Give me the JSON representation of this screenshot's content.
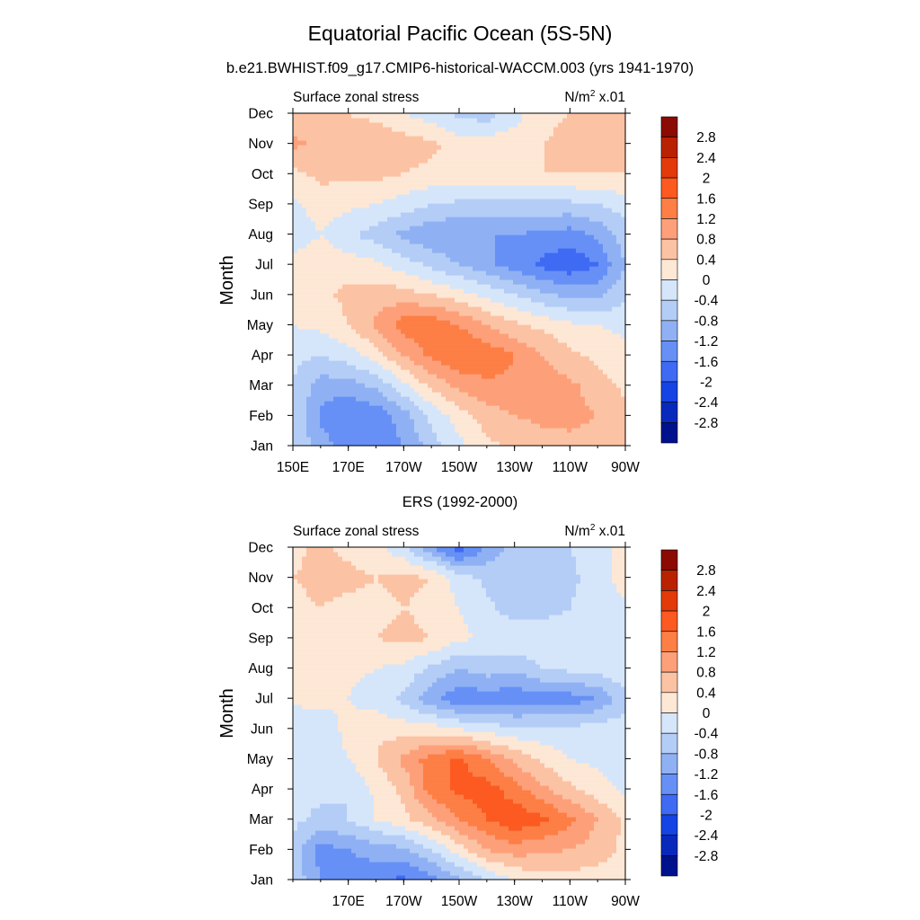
{
  "figure": {
    "title": "Equatorial Pacific Ocean (5S-5N)",
    "colorbar_levels": [
      "2.8",
      "2.4",
      "2",
      "1.6",
      "1.2",
      "0.8",
      "0.4",
      "0",
      "-0.4",
      "-0.8",
      "-1.2",
      "-1.6",
      "-2",
      "-2.4",
      "-2.8"
    ],
    "colorbar_colors": [
      "#8b0a02",
      "#b82200",
      "#e23a08",
      "#fc5a20",
      "#fd7f45",
      "#fda07a",
      "#fcc2a4",
      "#fde7d5",
      "#d5e6fb",
      "#b4cdf6",
      "#8fb1f4",
      "#6690f6",
      "#3e6af4",
      "#1643e4",
      "#0829bc",
      "#00118e"
    ]
  },
  "chart_data": [
    {
      "type": "heatmap",
      "title": "b.e21.BWHIST.f09_g17.CMIP6-historical-WACCM.003 (yrs 1941-1970)",
      "left_label": "Surface zonal stress",
      "units_prefix": "N/m",
      "units_sup": "2",
      "units_suffix": " x.01",
      "ylabel": "Month",
      "x_ticks": [
        "150E",
        "170E",
        "170W",
        "150W",
        "130W",
        "110W",
        "90W"
      ],
      "x_tick_positions": [
        150,
        170,
        190,
        210,
        230,
        250,
        270
      ],
      "x_range": [
        150,
        270
      ],
      "y_ticks": [
        "Jan",
        "Feb",
        "Mar",
        "Apr",
        "May",
        "Jun",
        "Jul",
        "Aug",
        "Sep",
        "Oct",
        "Nov",
        "Dec"
      ],
      "value_range": [
        -2.8,
        2.8
      ],
      "values": [
        [
          -0.4,
          -1.0,
          -1.4,
          -1.5,
          -1.2,
          -0.6,
          -0.1,
          0.3,
          0.5,
          0.6,
          0.7,
          0.6,
          0.5
        ],
        [
          -0.4,
          -1.3,
          -1.6,
          -1.5,
          -1.0,
          -0.3,
          0.2,
          0.6,
          0.8,
          0.9,
          0.9,
          0.8,
          0.5
        ],
        [
          -0.4,
          -1.0,
          -1.0,
          -0.7,
          -0.1,
          0.5,
          0.9,
          1.1,
          1.1,
          1.0,
          0.9,
          0.6,
          0.3
        ],
        [
          -0.3,
          -0.4,
          -0.2,
          0.2,
          0.8,
          1.3,
          1.6,
          1.5,
          1.2,
          0.8,
          0.5,
          0.3,
          0.1
        ],
        [
          0.0,
          0.1,
          0.4,
          0.9,
          1.4,
          1.5,
          1.2,
          0.8,
          0.5,
          0.3,
          0.1,
          0.0,
          -0.1
        ],
        [
          0.1,
          0.3,
          0.5,
          0.6,
          0.6,
          0.4,
          0.2,
          -0.1,
          -0.4,
          -0.7,
          -0.9,
          -0.9,
          -0.5
        ],
        [
          0.2,
          0.3,
          0.2,
          0.1,
          -0.2,
          -0.5,
          -0.8,
          -1.1,
          -1.4,
          -1.7,
          -1.9,
          -1.6,
          -0.8
        ],
        [
          -0.3,
          0.0,
          -0.3,
          -0.6,
          -0.9,
          -1.1,
          -1.2,
          -1.2,
          -1.2,
          -1.3,
          -1.4,
          -1.1,
          -0.6
        ],
        [
          -0.1,
          0.2,
          0.1,
          0.0,
          -0.2,
          -0.4,
          -0.5,
          -0.5,
          -0.5,
          -0.5,
          -0.5,
          -0.4,
          -0.2
        ],
        [
          0.3,
          0.5,
          0.5,
          0.5,
          0.4,
          0.3,
          0.3,
          0.3,
          0.3,
          0.4,
          0.4,
          0.4,
          0.4
        ],
        [
          0.9,
          0.7,
          0.6,
          0.7,
          0.6,
          0.5,
          0.2,
          0.2,
          0.3,
          0.4,
          0.5,
          0.5,
          0.5
        ],
        [
          0.5,
          0.5,
          0.4,
          0.3,
          0.0,
          -0.2,
          -0.5,
          -0.6,
          -0.2,
          0.3,
          0.4,
          0.5,
          0.5
        ]
      ]
    },
    {
      "type": "heatmap",
      "title": "ERS (1992-2000)",
      "left_label": "Surface zonal stress",
      "units_prefix": "N/m",
      "units_sup": "2",
      "units_suffix": " x.01",
      "ylabel": "Month",
      "x_ticks": [
        "170E",
        "170W",
        "150W",
        "130W",
        "110W",
        "90W"
      ],
      "x_tick_positions": [
        170,
        190,
        210,
        230,
        250,
        270
      ],
      "x_range": [
        150,
        270
      ],
      "y_ticks": [
        "Jan",
        "Feb",
        "Mar",
        "Apr",
        "May",
        "Jun",
        "Jul",
        "Aug",
        "Sep",
        "Oct",
        "Nov",
        "Dec"
      ],
      "value_range": [
        -2.8,
        2.8
      ],
      "values": [
        [
          -0.5,
          -1.2,
          -1.5,
          -1.5,
          -1.7,
          -1.4,
          -0.9,
          -0.4,
          0.0,
          0.2,
          0.2,
          0.2,
          0.1
        ],
        [
          -0.5,
          -1.4,
          -1.2,
          -1.0,
          -0.9,
          -0.4,
          0.2,
          0.8,
          1.0,
          0.9,
          0.8,
          0.6,
          0.3
        ],
        [
          -0.3,
          -0.5,
          -0.4,
          0.0,
          0.3,
          0.7,
          1.2,
          1.6,
          1.9,
          1.7,
          1.3,
          0.8,
          0.3
        ],
        [
          -0.3,
          -0.3,
          -0.4,
          0.1,
          0.5,
          1.4,
          1.7,
          1.8,
          1.4,
          0.9,
          0.5,
          0.2,
          -0.1
        ],
        [
          -0.2,
          -0.2,
          0.0,
          0.4,
          0.9,
          1.4,
          1.7,
          1.2,
          0.7,
          0.3,
          0.0,
          -0.1,
          -0.2
        ],
        [
          -0.3,
          -0.2,
          0.1,
          0.3,
          0.2,
          0.2,
          0.0,
          -0.2,
          -0.3,
          -0.3,
          -0.3,
          -0.2,
          -0.2
        ],
        [
          0.1,
          0.1,
          0.0,
          -0.2,
          -0.5,
          -1.1,
          -1.5,
          -1.4,
          -1.5,
          -1.4,
          -1.4,
          -1.2,
          -0.5
        ],
        [
          0.1,
          0.2,
          0.1,
          0.0,
          -0.1,
          -0.5,
          -0.8,
          -0.6,
          -0.7,
          -0.4,
          -0.3,
          -0.2,
          -0.1
        ],
        [
          0.2,
          0.4,
          0.3,
          0.4,
          0.5,
          0.4,
          0.1,
          -0.1,
          -0.1,
          -0.1,
          0.0,
          0.0,
          0.0
        ],
        [
          0.3,
          0.4,
          0.3,
          0.3,
          0.4,
          0.3,
          0.0,
          -0.3,
          -0.6,
          -0.6,
          -0.4,
          -0.2,
          -0.1
        ],
        [
          0.4,
          0.5,
          0.5,
          0.4,
          0.5,
          0.4,
          -0.2,
          -0.5,
          -0.7,
          -0.7,
          -0.5,
          -0.2,
          0.2
        ],
        [
          0.3,
          0.5,
          0.3,
          0.1,
          -0.3,
          -1.1,
          -1.9,
          -1.1,
          -0.6,
          -0.5,
          -0.4,
          -0.2,
          0.2
        ]
      ]
    }
  ]
}
